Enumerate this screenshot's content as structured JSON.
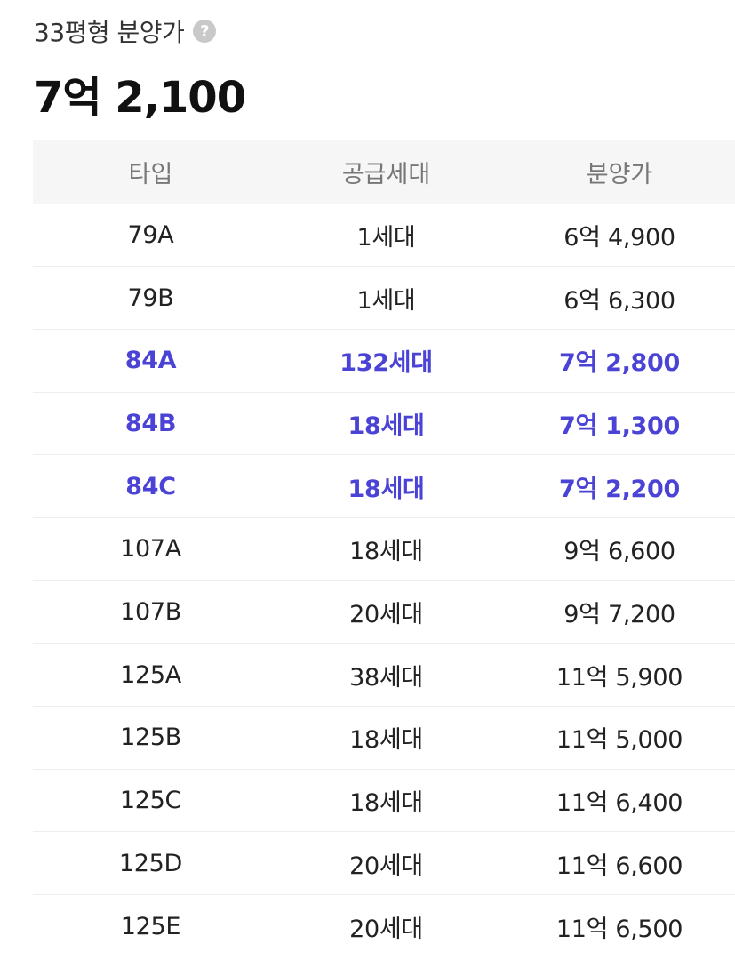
{
  "header": {
    "subtitle": "33평형 분양가",
    "help_glyph": "?",
    "price": "7억 2,100"
  },
  "table": {
    "columns": [
      "타입",
      "공급세대",
      "분양가"
    ],
    "highlight_color": "#4a43d6",
    "rows": [
      {
        "type": "79A",
        "units": "1세대",
        "price": "6억 4,900",
        "highlight": false
      },
      {
        "type": "79B",
        "units": "1세대",
        "price": "6억 6,300",
        "highlight": false
      },
      {
        "type": "84A",
        "units": "132세대",
        "price": "7억 2,800",
        "highlight": true
      },
      {
        "type": "84B",
        "units": "18세대",
        "price": "7억 1,300",
        "highlight": true
      },
      {
        "type": "84C",
        "units": "18세대",
        "price": "7억 2,200",
        "highlight": true
      },
      {
        "type": "107A",
        "units": "18세대",
        "price": "9억 6,600",
        "highlight": false
      },
      {
        "type": "107B",
        "units": "20세대",
        "price": "9억 7,200",
        "highlight": false
      },
      {
        "type": "125A",
        "units": "38세대",
        "price": "11억 5,900",
        "highlight": false
      },
      {
        "type": "125B",
        "units": "18세대",
        "price": "11억 5,000",
        "highlight": false
      },
      {
        "type": "125C",
        "units": "18세대",
        "price": "11억 6,400",
        "highlight": false
      },
      {
        "type": "125D",
        "units": "20세대",
        "price": "11억 6,600",
        "highlight": false
      },
      {
        "type": "125E",
        "units": "20세대",
        "price": "11억 6,500",
        "highlight": false
      }
    ]
  }
}
